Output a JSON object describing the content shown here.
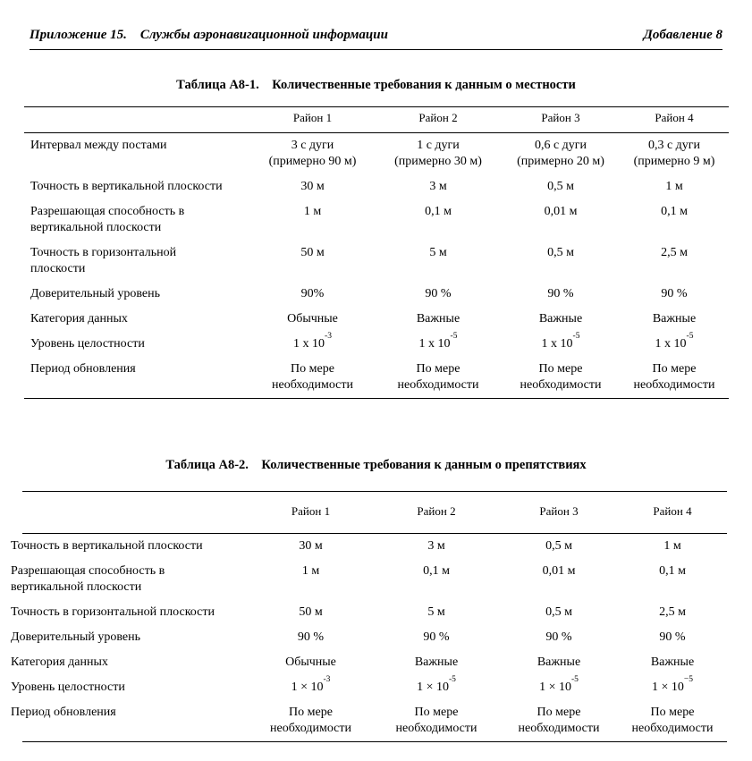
{
  "page": {
    "header": {
      "left": "Приложение 15. Службы аэронавигационной информации",
      "right": "Добавление 8"
    },
    "colors": {
      "background": "#ffffff",
      "text": "#000000",
      "rule": "#000000"
    }
  },
  "tables": [
    {
      "title": "Таблица А8-1. Количественные требования к данным о местности",
      "columns": [
        "Район 1",
        "Район 2",
        "Район 3",
        "Район 4"
      ],
      "rows": [
        {
          "label": "Интервал между постами",
          "values": [
            "3 с дуги\n(примерно 90 м)",
            "1 с дуги\n(примерно 30 м)",
            "0,6 с дуги\n(примерно 20 м)",
            "0,3 с дуги\n(примерно 9 м)"
          ]
        },
        {
          "label": "Точность в вертикальной плоскости",
          "values": [
            "30 м",
            "3 м",
            "0,5 м",
            "1 м"
          ]
        },
        {
          "label": "Разрешающая способность в\nвертикальной плоскости",
          "values": [
            "1 м",
            "0,1 м",
            "0,01 м",
            "0,1 м"
          ]
        },
        {
          "label": "Точность в горизонтальной\nплоскости",
          "values": [
            "50 м",
            "5 м",
            "0,5 м",
            "2,5 м"
          ]
        },
        {
          "label": "Доверительный уровень",
          "values": [
            "90%",
            "90 %",
            "90 %",
            "90 %"
          ]
        },
        {
          "label": "Категория данных",
          "values": [
            "Обычные",
            "Важные",
            "Важные",
            "Важные"
          ]
        },
        {
          "label": "Уровень целостности",
          "values": [
            "1 x 10^{-3}",
            "1 x 10^{-5}",
            "1 x 10^{-5}",
            "1 x 10^{-5}"
          ]
        },
        {
          "label": "Период обновления",
          "values": [
            "По мере\nнеобходимости",
            "По мере\nнеобходимости",
            "По мере\nнеобходимости",
            "По мере\nнеобходимости"
          ]
        }
      ]
    },
    {
      "title": "Таблица А8-2. Количественные требования к данным о препятствиях",
      "columns": [
        "Район 1",
        "Район 2",
        "Район 3",
        "Район 4"
      ],
      "rows": [
        {
          "label": "Точность в вертикальной плоскости",
          "values": [
            "30 м",
            "3 м",
            "0,5 м",
            "1 м"
          ]
        },
        {
          "label": "Разрешающая способность в\nвертикальной плоскости",
          "values": [
            "1 м",
            "0,1 м",
            "0,01 м",
            "0,1 м"
          ]
        },
        {
          "label": "Точность в горизонтальной плоскости",
          "values": [
            "50 м",
            "5 м",
            "0,5 м",
            "2,5 м"
          ]
        },
        {
          "label": "Доверительный уровень",
          "values": [
            "90 %",
            "90 %",
            "90 %",
            "90 %"
          ]
        },
        {
          "label": "Категория данных",
          "values": [
            "Обычные",
            "Важные",
            "Важные",
            "Важные"
          ]
        },
        {
          "label": "Уровень целостности",
          "values": [
            "1 × 10^{-3}",
            "1 × 10^{-5}",
            "1 × 10^{-5}",
            "1 × 10^{−5}"
          ]
        },
        {
          "label": "Период обновления",
          "values": [
            "По мере\nнеобходимости",
            "По мере\nнеобходимости",
            "По мере\nнеобходимости",
            "По мере\nнеобходимости"
          ]
        }
      ]
    }
  ]
}
